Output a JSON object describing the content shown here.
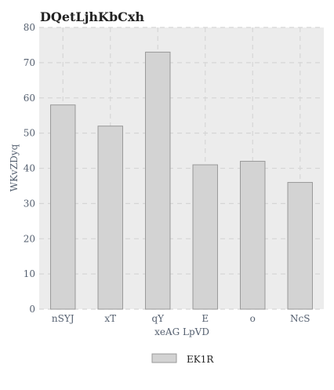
{
  "chart_data": {
    "type": "bar",
    "title": "DQetLjhKbCxh",
    "xlabel": "xeAG LpVD",
    "ylabel": "WKvZDyq",
    "categories": [
      "nSYJ",
      "xT",
      "qY",
      "E",
      "o",
      "NcS"
    ],
    "series": [
      {
        "name": "EK1R",
        "values": [
          58,
          52,
          73,
          41,
          42,
          36
        ]
      }
    ],
    "ylim": [
      0,
      80
    ],
    "yticks": [
      0,
      10,
      20,
      30,
      40,
      50,
      60,
      70,
      80
    ],
    "grid": true,
    "legend_position": "bottom-center",
    "colors": {
      "plot_background": "#ececec",
      "bar_fill": "#d3d3d3",
      "bar_stroke": "#999999",
      "grid": "#d6d6d6"
    }
  }
}
